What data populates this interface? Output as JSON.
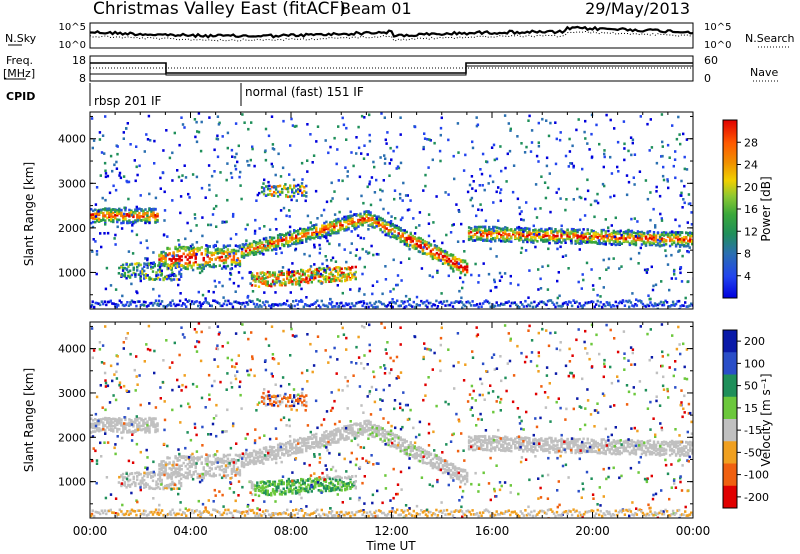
{
  "header": {
    "title": "Christmas Valley East (fitACF)",
    "beam": "Beam 01",
    "date": "29/May/2013"
  },
  "status_panels": {
    "nsky_label": "N.Sky",
    "nsearch_label": "N.Search",
    "noise_ticks": [
      "10^5",
      "10^0"
    ],
    "freq_label_line1": "Freq.",
    "freq_label_line2": "[MHz]",
    "freq_ticks": [
      "18",
      "8"
    ],
    "nave_label": "Nave",
    "nave_ticks": [
      "60",
      "0"
    ],
    "cpid_label": "CPID",
    "cpid_segments": [
      {
        "label": "rbsp 201 IF",
        "start_hour": 0.0
      },
      {
        "label": "normal (fast) 151 IF",
        "start_hour": 6.0
      }
    ]
  },
  "chart_data": [
    {
      "type": "heatmap",
      "name": "power",
      "xlabel": "",
      "ylabel": "Slant Range [km]",
      "xlim": [
        0,
        24
      ],
      "ylim": [
        180,
        4600
      ],
      "yticks": [
        "1000",
        "2000",
        "3000",
        "4000"
      ],
      "colorbar_label": "Power [dB]",
      "colorbar_ticks": [
        "28",
        "24",
        "20",
        "16",
        "12",
        "8",
        "4"
      ],
      "colorbar_colors": [
        "#0000dd",
        "#2244ee",
        "#2a6fb0",
        "#1f8f5a",
        "#3aa83a",
        "#8cc832",
        "#f0d000",
        "#f09000",
        "#ff5a00",
        "#e00000"
      ],
      "features": [
        {
          "start": 0.0,
          "end": 2.7,
          "range_km": 2300
        },
        {
          "start": 1.3,
          "end": 3.5,
          "range_km": 1050
        },
        {
          "start": 3.0,
          "end": 6.0,
          "range_km": 1400
        },
        {
          "start": 6.0,
          "end": 11.0,
          "range_km": 2200
        },
        {
          "start": 6.5,
          "end": 10.5,
          "range_km": 850
        },
        {
          "start": 11.0,
          "end": 15.0,
          "range_km": 1100
        },
        {
          "start": 15.0,
          "end": 24.0,
          "range_km": 1800
        },
        {
          "start": 6.8,
          "end": 8.5,
          "range_km": 2800
        }
      ]
    },
    {
      "type": "heatmap",
      "name": "velocity",
      "xlabel": "Time UT",
      "ylabel": "Slant Range [km]",
      "xlim": [
        0,
        24
      ],
      "ylim": [
        180,
        4600
      ],
      "xticks": [
        "00:00",
        "04:00",
        "08:00",
        "12:00",
        "16:00",
        "20:00",
        "00:00"
      ],
      "yticks": [
        "1000",
        "2000",
        "3000",
        "4000"
      ],
      "colorbar_label": "Velocity [m s⁻¹]",
      "colorbar_ticks": [
        "200",
        "100",
        "50",
        "15",
        "-15",
        "-50",
        "-100",
        "-200"
      ],
      "colorbar_colors": [
        "#0a1aa8",
        "#2a4ec8",
        "#1f8f5a",
        "#6cc83c",
        "#c0c0c0",
        "#f0a020",
        "#f06010",
        "#e00000"
      ]
    }
  ]
}
